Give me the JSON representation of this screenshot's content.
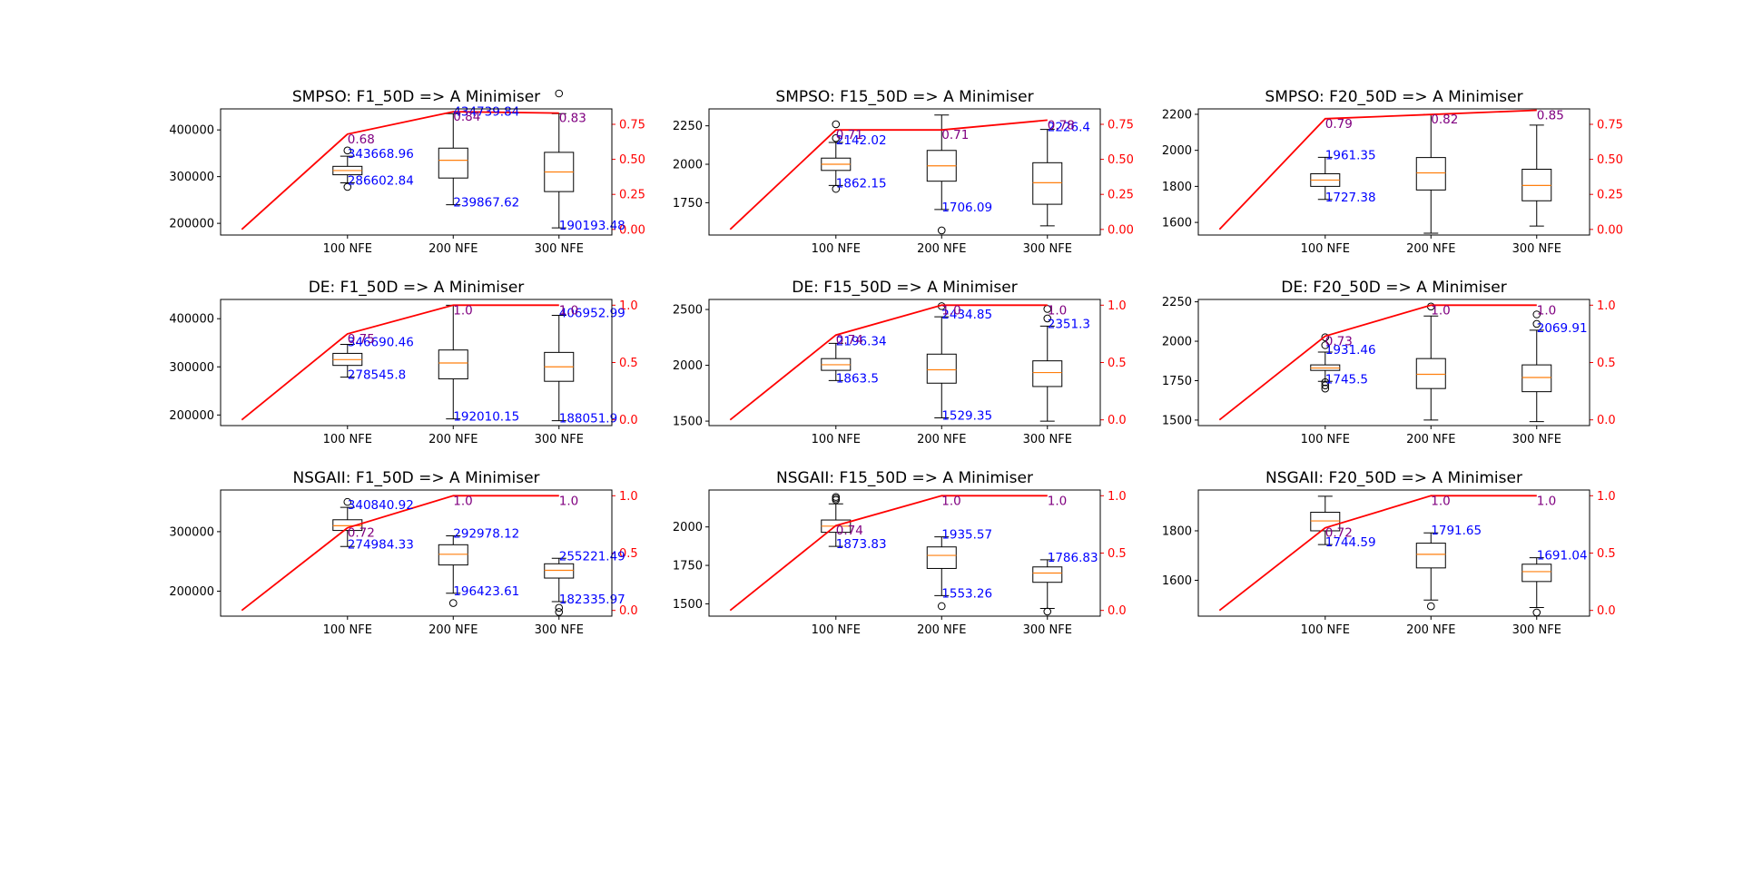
{
  "colors": {
    "box": "#000000",
    "median": "#ff7f0e",
    "line": "#ff0000",
    "max_min_label": "#0000ff",
    "ratio_label": "#800080",
    "right_axis": "#ff0000"
  },
  "chart_data": [
    {
      "type": "box",
      "title": "SMPSO: F1_50D => A Minimiser",
      "categories": [
        "100 NFE",
        "200 NFE",
        "300 NFE"
      ],
      "ylim": [
        175000,
        445000
      ],
      "yticks": [
        200000,
        300000,
        400000
      ],
      "ytick_labels": [
        "200000",
        "300000",
        "400000"
      ],
      "boxes": [
        {
          "whislo": 286602.84,
          "q1": 304000,
          "med": 313000,
          "q3": 322000,
          "whishi": 343668.96,
          "fliers": [
            278000,
            356000
          ]
        },
        {
          "whislo": 239867.62,
          "q1": 297000,
          "med": 335000,
          "q3": 361000,
          "whishi": 434739.84,
          "fliers": []
        },
        {
          "whislo": 190193.48,
          "q1": 268000,
          "med": 310000,
          "q3": 352000,
          "whishi": 434739.84,
          "fliers": [
            478000
          ]
        }
      ],
      "max_labels": [
        "343668.96",
        "434739.84",
        ""
      ],
      "min_labels": [
        "286602.84",
        "239867.62",
        "190193.48"
      ],
      "line": {
        "x": [
          0,
          1,
          2,
          3
        ],
        "y": [
          0.0,
          0.68,
          0.84,
          0.83
        ]
      },
      "ratio_labels": [
        "0.68",
        "0.84",
        "0.83"
      ],
      "right_ylim": [
        -0.04,
        0.86
      ],
      "right_yticks": [
        0.0,
        0.25,
        0.5,
        0.75
      ],
      "right_ytick_labels": [
        "0.00",
        "0.25",
        "0.50",
        "0.75"
      ]
    },
    {
      "type": "box",
      "title": "SMPSO: F15_50D => A Minimiser",
      "categories": [
        "100 NFE",
        "200 NFE",
        "300 NFE"
      ],
      "ylim": [
        1540,
        2360
      ],
      "yticks": [
        1750,
        2000,
        2250
      ],
      "ytick_labels": [
        "1750",
        "2000",
        "2250"
      ],
      "boxes": [
        {
          "whislo": 1862.15,
          "q1": 1960,
          "med": 2000,
          "q3": 2040,
          "whishi": 2142.02,
          "fliers": [
            1840,
            2170,
            2260
          ]
        },
        {
          "whislo": 1706.09,
          "q1": 1890,
          "med": 1990,
          "q3": 2090,
          "whishi": 2320,
          "fliers": [
            1570
          ]
        },
        {
          "whislo": 1600,
          "q1": 1740,
          "med": 1880,
          "q3": 2010,
          "whishi": 2226.4,
          "fliers": []
        }
      ],
      "max_labels": [
        "2142.02",
        "",
        "2226.4"
      ],
      "min_labels": [
        "1862.15",
        "1706.09",
        ""
      ],
      "line": {
        "x": [
          0,
          1,
          2,
          3
        ],
        "y": [
          0.0,
          0.71,
          0.71,
          0.78
        ]
      },
      "ratio_labels": [
        "0.71",
        "0.71",
        "0.78"
      ],
      "right_ylim": [
        -0.04,
        0.86
      ],
      "right_yticks": [
        0.0,
        0.25,
        0.5,
        0.75
      ],
      "right_ytick_labels": [
        "0.00",
        "0.25",
        "0.50",
        "0.75"
      ]
    },
    {
      "type": "box",
      "title": "SMPSO: F20_50D => A Minimiser",
      "categories": [
        "100 NFE",
        "200 NFE",
        "300 NFE"
      ],
      "ylim": [
        1530,
        2230
      ],
      "yticks": [
        1600,
        1800,
        2000,
        2200
      ],
      "ytick_labels": [
        "1600",
        "1800",
        "2000",
        "2200"
      ],
      "boxes": [
        {
          "whislo": 1727.38,
          "q1": 1800,
          "med": 1835,
          "q3": 1870,
          "whishi": 1961.35,
          "fliers": []
        },
        {
          "whislo": 1540,
          "q1": 1780,
          "med": 1875,
          "q3": 1960,
          "whishi": 2200,
          "fliers": []
        },
        {
          "whislo": 1580,
          "q1": 1720,
          "med": 1805,
          "q3": 1895,
          "whishi": 2140,
          "fliers": []
        }
      ],
      "max_labels": [
        "1961.35",
        "",
        ""
      ],
      "min_labels": [
        "1727.38",
        "",
        ""
      ],
      "line": {
        "x": [
          0,
          1,
          2,
          3
        ],
        "y": [
          0.0,
          0.79,
          0.82,
          0.85
        ]
      },
      "ratio_labels": [
        "0.79",
        "0.82",
        "0.85"
      ],
      "right_ylim": [
        -0.04,
        0.86
      ],
      "right_yticks": [
        0.0,
        0.25,
        0.5,
        0.75
      ],
      "right_ytick_labels": [
        "0.00",
        "0.25",
        "0.50",
        "0.75"
      ]
    },
    {
      "type": "box",
      "title": "DE: F1_50D => A Minimiser",
      "categories": [
        "100 NFE",
        "200 NFE",
        "300 NFE"
      ],
      "ylim": [
        178000,
        440000
      ],
      "yticks": [
        200000,
        300000,
        400000
      ],
      "ytick_labels": [
        "200000",
        "300000",
        "400000"
      ],
      "boxes": [
        {
          "whislo": 278545.8,
          "q1": 303000,
          "med": 315000,
          "q3": 328000,
          "whishi": 346690.46,
          "fliers": []
        },
        {
          "whislo": 192010.15,
          "q1": 275000,
          "med": 308000,
          "q3": 335000,
          "whishi": 428000,
          "fliers": []
        },
        {
          "whislo": 188051.9,
          "q1": 270000,
          "med": 300000,
          "q3": 330000,
          "whishi": 406952.99,
          "fliers": []
        }
      ],
      "max_labels": [
        "346690.46",
        "",
        "406952.99"
      ],
      "min_labels": [
        "278545.8",
        "192010.15",
        "188051.9"
      ],
      "line": {
        "x": [
          0,
          1,
          2,
          3
        ],
        "y": [
          0.0,
          0.75,
          1.0,
          1.0
        ]
      },
      "ratio_labels": [
        "0.75",
        "1.0",
        "1.0"
      ],
      "right_ylim": [
        -0.05,
        1.05
      ],
      "right_yticks": [
        0.0,
        0.5,
        1.0
      ],
      "right_ytick_labels": [
        "0.0",
        "0.5",
        "1.0"
      ]
    },
    {
      "type": "box",
      "title": "DE: F15_50D => A Minimiser",
      "categories": [
        "100 NFE",
        "200 NFE",
        "300 NFE"
      ],
      "ylim": [
        1460,
        2590
      ],
      "yticks": [
        1500,
        2000,
        2500
      ],
      "ytick_labels": [
        "1500",
        "2000",
        "2500"
      ],
      "boxes": [
        {
          "whislo": 1863.5,
          "q1": 1955,
          "med": 2005,
          "q3": 2060,
          "whishi": 2196.34,
          "fliers": []
        },
        {
          "whislo": 1529.35,
          "q1": 1840,
          "med": 1960,
          "q3": 2100,
          "whishi": 2434.85,
          "fliers": [
            2530
          ]
        },
        {
          "whislo": 1500,
          "q1": 1810,
          "med": 1935,
          "q3": 2040,
          "whishi": 2351.3,
          "fliers": [
            2420,
            2505
          ]
        }
      ],
      "max_labels": [
        "2196.34",
        "2434.85",
        "2351.3"
      ],
      "min_labels": [
        "1863.5",
        "1529.35",
        ""
      ],
      "line": {
        "x": [
          0,
          1,
          2,
          3
        ],
        "y": [
          0.0,
          0.74,
          1.0,
          1.0
        ]
      },
      "ratio_labels": [
        "0.74",
        "1.0",
        "1.0"
      ],
      "right_ylim": [
        -0.05,
        1.05
      ],
      "right_yticks": [
        0.0,
        0.5,
        1.0
      ],
      "right_ytick_labels": [
        "0.0",
        "0.5",
        "1.0"
      ]
    },
    {
      "type": "box",
      "title": "DE: F20_50D => A Minimiser",
      "categories": [
        "100 NFE",
        "200 NFE",
        "300 NFE"
      ],
      "ylim": [
        1465,
        2265
      ],
      "yticks": [
        1500,
        1750,
        2000,
        2250
      ],
      "ytick_labels": [
        "1500",
        "1750",
        "2000",
        "2250"
      ],
      "boxes": [
        {
          "whislo": 1745.5,
          "q1": 1815,
          "med": 1830,
          "q3": 1850,
          "whishi": 1931.46,
          "fliers": [
            1700,
            1720,
            1740,
            1975,
            2025
          ]
        },
        {
          "whislo": 1500,
          "q1": 1700,
          "med": 1790,
          "q3": 1890,
          "whishi": 2160,
          "fliers": [
            2220
          ]
        },
        {
          "whislo": 1490,
          "q1": 1680,
          "med": 1770,
          "q3": 1850,
          "whishi": 2069.91,
          "fliers": [
            2110,
            2170
          ]
        }
      ],
      "max_labels": [
        "1931.46",
        "",
        "2069.91"
      ],
      "min_labels": [
        "1745.5",
        "",
        ""
      ],
      "line": {
        "x": [
          0,
          1,
          2,
          3
        ],
        "y": [
          0.0,
          0.73,
          1.0,
          1.0
        ]
      },
      "ratio_labels": [
        "0.73",
        "1.0",
        "1.0"
      ],
      "right_ylim": [
        -0.05,
        1.05
      ],
      "right_yticks": [
        0.0,
        0.5,
        1.0
      ],
      "right_ytick_labels": [
        "0.0",
        "0.5",
        "1.0"
      ]
    },
    {
      "type": "box",
      "title": "NSGAII: F1_50D => A Minimiser",
      "categories": [
        "100 NFE",
        "200 NFE",
        "300 NFE"
      ],
      "ylim": [
        158000,
        370000
      ],
      "yticks": [
        200000,
        300000
      ],
      "ytick_labels": [
        "200000",
        "300000"
      ],
      "boxes": [
        {
          "whislo": 274984.33,
          "q1": 302000,
          "med": 310000,
          "q3": 320000,
          "whishi": 340840.92,
          "fliers": [
            350000
          ]
        },
        {
          "whislo": 196423.61,
          "q1": 244000,
          "med": 262000,
          "q3": 278000,
          "whishi": 292978.12,
          "fliers": [
            180000
          ]
        },
        {
          "whislo": 182335.97,
          "q1": 222000,
          "med": 235000,
          "q3": 246000,
          "whishi": 255221.49,
          "fliers": [
            165000,
            172000
          ]
        }
      ],
      "max_labels": [
        "340840.92",
        "292978.12",
        "255221.49"
      ],
      "min_labels": [
        "274984.33",
        "196423.61",
        "182335.97"
      ],
      "line": {
        "x": [
          0,
          1,
          2,
          3
        ],
        "y": [
          0.0,
          0.72,
          1.0,
          1.0
        ]
      },
      "ratio_labels": [
        "0.72",
        "1.0",
        "1.0"
      ],
      "right_ylim": [
        -0.05,
        1.05
      ],
      "right_yticks": [
        0.0,
        0.5,
        1.0
      ],
      "right_ytick_labels": [
        "0.0",
        "0.5",
        "1.0"
      ]
    },
    {
      "type": "box",
      "title": "NSGAII: F15_50D => A Minimiser",
      "categories": [
        "100 NFE",
        "200 NFE",
        "300 NFE"
      ],
      "ylim": [
        1420,
        2240
      ],
      "yticks": [
        1500,
        1750,
        2000
      ],
      "ytick_labels": [
        "1500",
        "1750",
        "2000"
      ],
      "boxes": [
        {
          "whislo": 1873.83,
          "q1": 1965,
          "med": 2005,
          "q3": 2045,
          "whishi": 2150,
          "fliers": [
            2175,
            2185,
            2195
          ]
        },
        {
          "whislo": 1553.26,
          "q1": 1730,
          "med": 1815,
          "q3": 1870,
          "whishi": 1935.57,
          "fliers": [
            1485
          ]
        },
        {
          "whislo": 1470,
          "q1": 1640,
          "med": 1700,
          "q3": 1740,
          "whishi": 1786.83,
          "fliers": [
            1450
          ]
        }
      ],
      "max_labels": [
        "",
        "1935.57",
        "1786.83"
      ],
      "min_labels": [
        "1873.83",
        "1553.26",
        ""
      ],
      "line": {
        "x": [
          0,
          1,
          2,
          3
        ],
        "y": [
          0.0,
          0.74,
          1.0,
          1.0
        ]
      },
      "ratio_labels": [
        "0.74",
        "1.0",
        "1.0"
      ],
      "right_ylim": [
        -0.05,
        1.05
      ],
      "right_yticks": [
        0.0,
        0.5,
        1.0
      ],
      "right_ytick_labels": [
        "0.0",
        "0.5",
        "1.0"
      ]
    },
    {
      "type": "box",
      "title": "NSGAII: F20_50D => A Minimiser",
      "categories": [
        "100 NFE",
        "200 NFE",
        "300 NFE"
      ],
      "ylim": [
        1455,
        1965
      ],
      "yticks": [
        1600,
        1800
      ],
      "ytick_labels": [
        "1600",
        "1800"
      ],
      "boxes": [
        {
          "whislo": 1744.59,
          "q1": 1800,
          "med": 1840,
          "q3": 1875,
          "whishi": 1940,
          "fliers": []
        },
        {
          "whislo": 1520,
          "q1": 1650,
          "med": 1705,
          "q3": 1750,
          "whishi": 1791.65,
          "fliers": [
            1495
          ]
        },
        {
          "whislo": 1490,
          "q1": 1595,
          "med": 1635,
          "q3": 1665,
          "whishi": 1691.04,
          "fliers": [
            1470
          ]
        }
      ],
      "max_labels": [
        "",
        "1791.65",
        "1691.04"
      ],
      "min_labels": [
        "1744.59",
        "",
        ""
      ],
      "line": {
        "x": [
          0,
          1,
          2,
          3
        ],
        "y": [
          0.0,
          0.72,
          1.0,
          1.0
        ]
      },
      "ratio_labels": [
        "0.72",
        "1.0",
        "1.0"
      ],
      "right_ylim": [
        -0.05,
        1.05
      ],
      "right_yticks": [
        0.0,
        0.5,
        1.0
      ],
      "right_ytick_labels": [
        "0.0",
        "0.5",
        "1.0"
      ]
    }
  ]
}
